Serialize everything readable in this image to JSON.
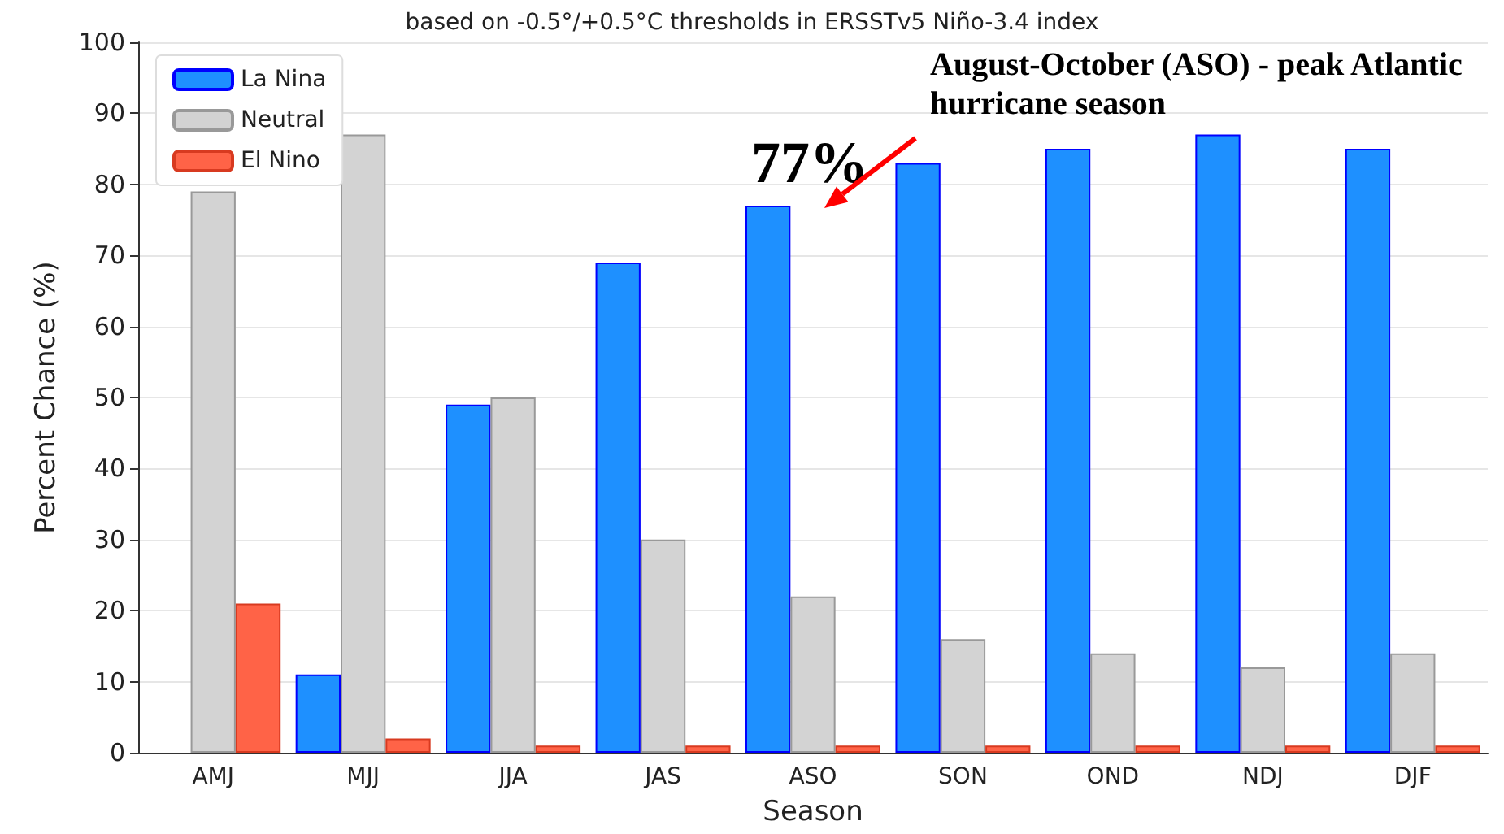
{
  "chart_data": {
    "type": "bar",
    "title": "based on -0.5°/+0.5°C thresholds in ERSSTv5 Niño-3.4 index",
    "xlabel": "Season",
    "ylabel": "Percent Chance (%)",
    "categories": [
      "AMJ",
      "MJJ",
      "JJA",
      "JAS",
      "ASO",
      "SON",
      "OND",
      "NDJ",
      "DJF"
    ],
    "series": [
      {
        "name": "La Nina",
        "color": "#1e90ff",
        "values": [
          0,
          11,
          49,
          69,
          77,
          83,
          85,
          87,
          85
        ]
      },
      {
        "name": "Neutral",
        "color": "#d3d3d3",
        "values": [
          79,
          87,
          50,
          30,
          22,
          16,
          14,
          12,
          14
        ]
      },
      {
        "name": "El Nino",
        "color": "#ff6347",
        "values": [
          21,
          2,
          1,
          1,
          1,
          1,
          1,
          1,
          1
        ]
      }
    ],
    "ylim": [
      0,
      100
    ],
    "yticks": [
      0,
      10,
      20,
      30,
      40,
      50,
      60,
      70,
      80,
      90,
      100
    ],
    "grid": "y",
    "legend": "top left",
    "annotations": [
      "77%",
      "August-October (ASO) - peak Atlantic hurricane season"
    ]
  }
}
